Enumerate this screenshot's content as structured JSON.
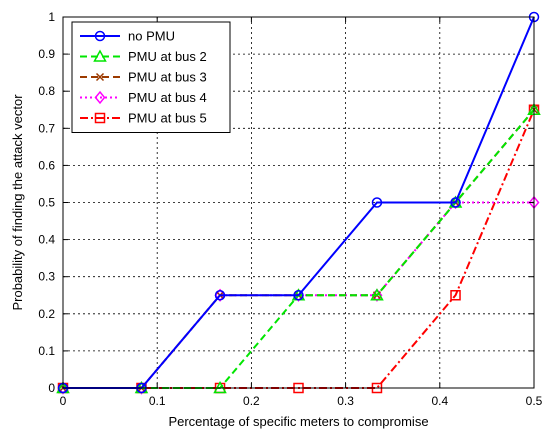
{
  "chart_data": {
    "type": "line",
    "title": "",
    "xlabel": "Percentage of specific meters to compromise",
    "ylabel": "Probability of finding the attack vector",
    "xlim": [
      0,
      0.5
    ],
    "ylim": [
      0,
      1
    ],
    "xticks": [
      "0",
      "0.1",
      "0.2",
      "0.3",
      "0.4",
      "0.5"
    ],
    "yticks": [
      "0",
      "0.1",
      "0.2",
      "0.3",
      "0.4",
      "0.5",
      "0.6",
      "0.7",
      "0.8",
      "0.9",
      "1"
    ],
    "grid": true,
    "legend_position": "top-left",
    "x": [
      0,
      0.0833,
      0.1667,
      0.25,
      0.3333,
      0.4167,
      0.5
    ],
    "series": [
      {
        "name": "no PMU",
        "values": [
          0,
          0,
          0.25,
          0.25,
          0.5,
          0.5,
          1.0
        ],
        "color": "#0000ff",
        "dash": "solid",
        "marker": "circle"
      },
      {
        "name": "PMU at bus 2",
        "values": [
          0,
          0,
          0,
          0.25,
          0.25,
          0.5,
          0.75
        ],
        "color": "#00e600",
        "dash": "dashed",
        "marker": "triangle"
      },
      {
        "name": "PMU at bus 3",
        "values": [
          0,
          0,
          0.25,
          0.25,
          0.25,
          0.5,
          0.75
        ],
        "color": "#9c3a00",
        "dash": "dashed",
        "marker": "x"
      },
      {
        "name": "PMU at bus 4",
        "values": [
          0,
          0,
          0.25,
          0.25,
          0.25,
          0.5,
          0.5
        ],
        "color": "#ff00ff",
        "dash": "dotted",
        "marker": "diamond"
      },
      {
        "name": "PMU at bus 5",
        "values": [
          0,
          0,
          0,
          0,
          0,
          0.25,
          0.75
        ],
        "color": "#ff0000",
        "dash": "dashdot",
        "marker": "square"
      }
    ]
  }
}
